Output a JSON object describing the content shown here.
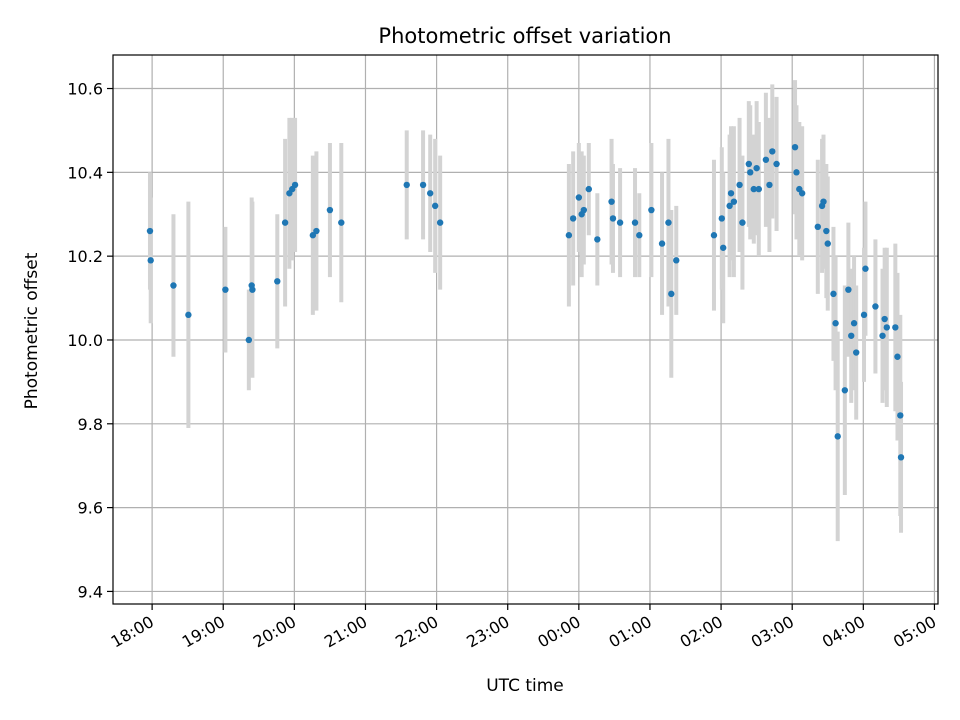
{
  "chart_data": {
    "type": "scatter",
    "title": "Photometric offset variation",
    "xlabel": "UTC time",
    "ylabel": "Photometric offset",
    "x_unit": "UTC time (hours, values after midnight continue past 24)",
    "xlim": [
      17.45,
      29.05
    ],
    "ylim": [
      9.37,
      10.68
    ],
    "grid": true,
    "x_ticks": [
      18,
      19,
      20,
      21,
      22,
      23,
      24,
      25,
      26,
      27,
      28,
      29
    ],
    "x_tick_labels": [
      "18:00",
      "19:00",
      "20:00",
      "21:00",
      "22:00",
      "23:00",
      "00:00",
      "01:00",
      "02:00",
      "03:00",
      "04:00",
      "05:00"
    ],
    "y_ticks": [
      9.4,
      9.6,
      9.8,
      10.0,
      10.2,
      10.4,
      10.6
    ],
    "y_tick_labels": [
      "9.4",
      "9.6",
      "9.8",
      "10.0",
      "10.2",
      "10.4",
      "10.6"
    ],
    "colors": {
      "marker": "#1f77b4",
      "errorbar": "#d3d3d3",
      "grid": "#b0b0b0"
    },
    "series": [
      {
        "points": [
          [
            17.97,
            10.26,
            0.14
          ],
          [
            17.98,
            10.19,
            0.15
          ],
          [
            18.3,
            10.13,
            0.17
          ],
          [
            18.51,
            10.06,
            0.27
          ],
          [
            19.03,
            10.12,
            0.15
          ],
          [
            19.36,
            10.0,
            0.12
          ],
          [
            19.4,
            10.13,
            0.21
          ],
          [
            19.41,
            10.12,
            0.21
          ],
          [
            19.76,
            10.14,
            0.16
          ],
          [
            19.87,
            10.28,
            0.2
          ],
          [
            19.93,
            10.35,
            0.18
          ],
          [
            19.97,
            10.36,
            0.17
          ],
          [
            20.01,
            10.37,
            0.16
          ],
          [
            20.26,
            10.25,
            0.19
          ],
          [
            20.31,
            10.26,
            0.19
          ],
          [
            20.5,
            10.31,
            0.16
          ],
          [
            20.66,
            10.28,
            0.19
          ],
          [
            21.58,
            10.37,
            0.13
          ],
          [
            21.81,
            10.37,
            0.13
          ],
          [
            21.91,
            10.35,
            0.14
          ],
          [
            21.98,
            10.32,
            0.16
          ],
          [
            22.05,
            10.28,
            0.16
          ],
          [
            23.86,
            10.25,
            0.17
          ],
          [
            23.92,
            10.29,
            0.16
          ],
          [
            24.0,
            10.34,
            0.13
          ],
          [
            24.04,
            10.3,
            0.15
          ],
          [
            24.07,
            10.31,
            0.13
          ],
          [
            24.14,
            10.36,
            0.11
          ],
          [
            24.26,
            10.24,
            0.11
          ],
          [
            24.46,
            10.33,
            0.15
          ],
          [
            24.48,
            10.29,
            0.13
          ],
          [
            24.58,
            10.28,
            0.13
          ],
          [
            24.79,
            10.28,
            0.13
          ],
          [
            24.85,
            10.25,
            0.1
          ],
          [
            25.02,
            10.31,
            0.16
          ],
          [
            25.17,
            10.23,
            0.17
          ],
          [
            25.26,
            10.28,
            0.2
          ],
          [
            25.3,
            10.11,
            0.2
          ],
          [
            25.37,
            10.19,
            0.13
          ],
          [
            25.9,
            10.25,
            0.18
          ],
          [
            26.01,
            10.29,
            0.17
          ],
          [
            26.03,
            10.22,
            0.18
          ],
          [
            26.12,
            10.32,
            0.17
          ],
          [
            26.14,
            10.35,
            0.16
          ],
          [
            26.18,
            10.33,
            0.18
          ],
          [
            26.26,
            10.37,
            0.16
          ],
          [
            26.3,
            10.28,
            0.16
          ],
          [
            26.39,
            10.42,
            0.15
          ],
          [
            26.41,
            10.4,
            0.16
          ],
          [
            26.46,
            10.36,
            0.13
          ],
          [
            26.5,
            10.41,
            0.16
          ],
          [
            26.53,
            10.36,
            0.16
          ],
          [
            26.63,
            10.43,
            0.16
          ],
          [
            26.68,
            10.37,
            0.16
          ],
          [
            26.72,
            10.45,
            0.16
          ],
          [
            26.78,
            10.42,
            0.16
          ],
          [
            27.04,
            10.46,
            0.16
          ],
          [
            27.06,
            10.4,
            0.16
          ],
          [
            27.1,
            10.36,
            0.16
          ],
          [
            27.14,
            10.35,
            0.16
          ],
          [
            27.36,
            10.27,
            0.16
          ],
          [
            27.42,
            10.32,
            0.16
          ],
          [
            27.44,
            10.33,
            0.16
          ],
          [
            27.48,
            10.26,
            0.16
          ],
          [
            27.5,
            10.23,
            0.16
          ],
          [
            27.58,
            10.11,
            0.16
          ],
          [
            27.61,
            10.04,
            0.16
          ],
          [
            27.64,
            9.77,
            0.25
          ],
          [
            27.74,
            9.88,
            0.25
          ],
          [
            27.79,
            10.12,
            0.16
          ],
          [
            27.83,
            10.01,
            0.16
          ],
          [
            27.87,
            10.04,
            0.16
          ],
          [
            27.9,
            9.97,
            0.16
          ],
          [
            28.01,
            10.06,
            0.16
          ],
          [
            28.03,
            10.17,
            0.16
          ],
          [
            28.17,
            10.08,
            0.16
          ],
          [
            28.27,
            10.01,
            0.16
          ],
          [
            28.3,
            10.05,
            0.17
          ],
          [
            28.33,
            10.03,
            0.19
          ],
          [
            28.45,
            10.03,
            0.2
          ],
          [
            28.48,
            9.96,
            0.2
          ],
          [
            28.52,
            9.82,
            0.24
          ],
          [
            28.53,
            9.72,
            0.18
          ]
        ]
      }
    ]
  }
}
